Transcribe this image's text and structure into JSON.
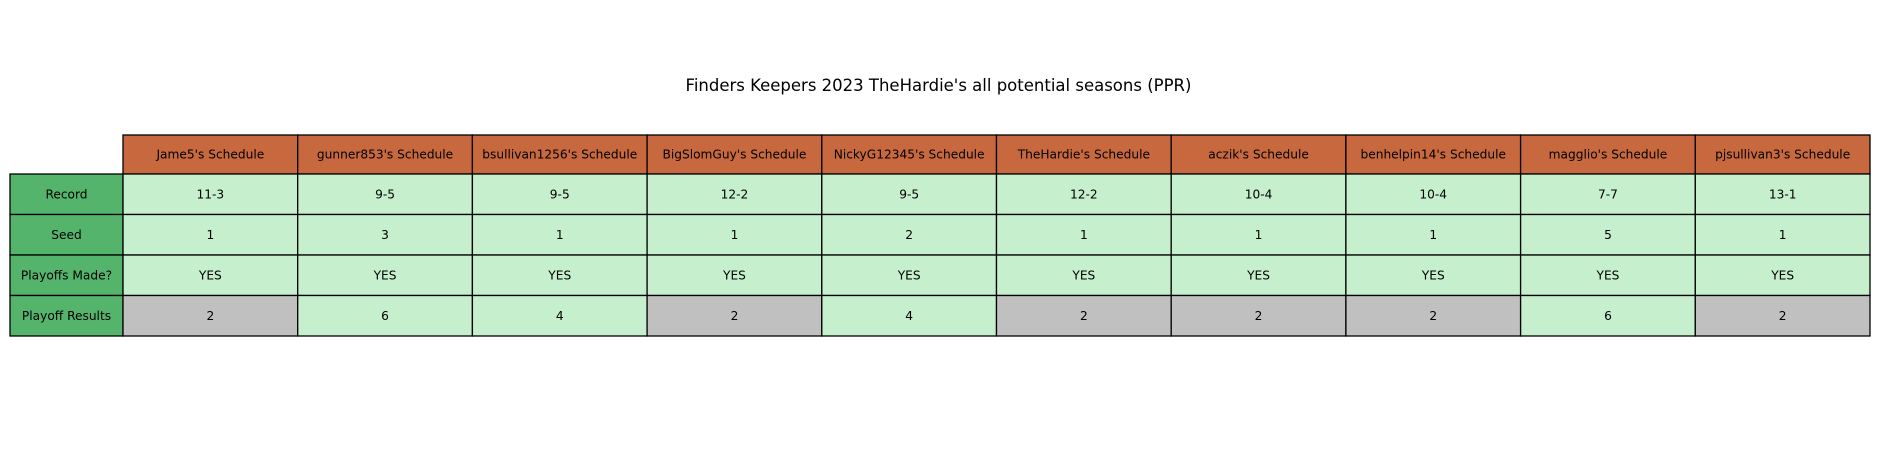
{
  "title": "Finders Keepers 2023 TheHardie's all potential seasons (PPR)",
  "colors": {
    "header_bg": "#c8683f",
    "row_label_bg": "#55b46c",
    "cell_green": "#c6efce",
    "cell_gray": "#c0c0c0",
    "border": "#000000"
  },
  "chart_data": {
    "type": "table",
    "title": "Finders Keepers 2023 TheHardie's all potential seasons (PPR)",
    "columns": [
      "Jame5's Schedule",
      "gunner853's Schedule",
      "bsullivan1256's Schedule",
      "BigSlomGuy's Schedule",
      "NickyG12345's Schedule",
      "TheHardie's Schedule",
      "aczik's Schedule",
      "benhelpin14's Schedule",
      "magglio's Schedule",
      "pjsullivan3's Schedule"
    ],
    "rows": [
      {
        "label": "Record",
        "values": [
          "11-3",
          "9-5",
          "9-5",
          "12-2",
          "9-5",
          "12-2",
          "10-4",
          "10-4",
          "7-7",
          "13-1"
        ]
      },
      {
        "label": "Seed",
        "values": [
          "1",
          "3",
          "1",
          "1",
          "2",
          "1",
          "1",
          "1",
          "5",
          "1"
        ]
      },
      {
        "label": "Playoffs Made?",
        "values": [
          "YES",
          "YES",
          "YES",
          "YES",
          "YES",
          "YES",
          "YES",
          "YES",
          "YES",
          "YES"
        ]
      },
      {
        "label": "Playoff Results",
        "values": [
          "2",
          "6",
          "4",
          "2",
          "4",
          "2",
          "2",
          "2",
          "6",
          "2"
        ],
        "highlight": [
          "gray",
          "green",
          "green",
          "gray",
          "green",
          "gray",
          "gray",
          "gray",
          "green",
          "gray"
        ]
      }
    ]
  }
}
